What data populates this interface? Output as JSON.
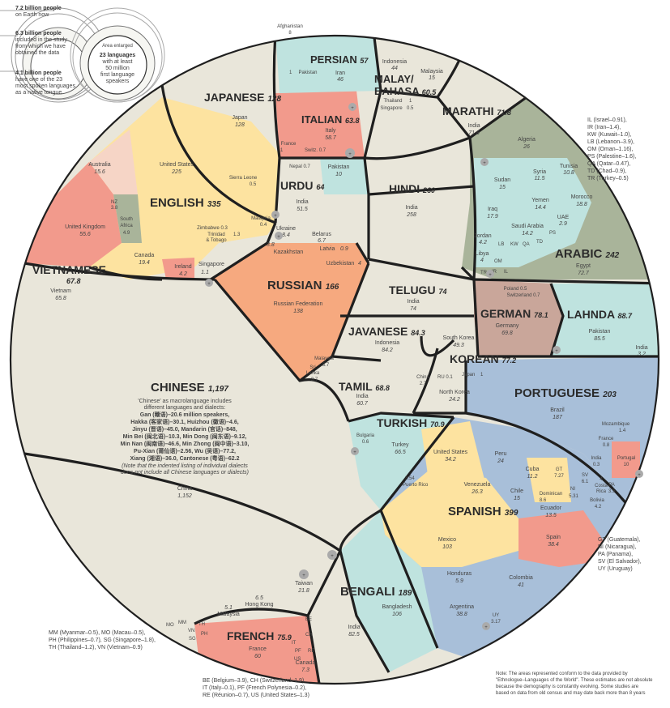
{
  "legend": {
    "earth_value": "7.2 billion people",
    "earth_desc": "on Earth now",
    "study_value": "6.3 billion people",
    "study_desc_1": "included in the study",
    "study_desc_2": "from which we have",
    "study_desc_3": "obtained the data",
    "native_value": "4.1 billion people",
    "native_desc_1": "have one of the 23",
    "native_desc_2": "most spoken languages",
    "native_desc_3": "as a native tongue",
    "enlarged": "Area enlarged",
    "inner_1": "23 languages",
    "inner_2": "with at least",
    "inner_3": "50 million",
    "inner_4": "first language",
    "inner_5": "speakers"
  },
  "languages": {
    "chinese": {
      "name": "CHINESE",
      "total": "1,197",
      "china_label": "China",
      "china_value": "1,152",
      "note_1": "'Chinese' as macrolanguage includes",
      "note_2": "different languages and dialects:",
      "d1": "Gan (赣语)–20.6 million speakers,",
      "d2": "Hakka (客家语)–30.1, Huizhou (徽语)–4.6,",
      "d3": "Jinyu (晋语)–45.0, Mandarin (官话)–848,",
      "d4": "Min Bei (闽北语)–10.3, Min Dong (闽东语)–9.12,",
      "d5": "Min Nan (闽南语)–46.6, Min Zhong (闽中语)–3.10,",
      "d6": "Pu-Xian (莆仙语)–2.56, Wu (吴语)–77.2,",
      "d7": "Xiang (湘语)–36.0, Cantonese (粤语)–62.2",
      "d8": "(Note that the indented listing of individual dialects",
      "d9": "does not include all Chinese languages or dialects)",
      "taiwan": "Taiwan",
      "taiwan_v": "21.8",
      "hk": "Hong Kong",
      "hk_v": "6.5",
      "malaysia": "Malaysia",
      "malaysia_v": "5.1",
      "mm": "MM",
      "mo": "MO",
      "vn": "VN",
      "th": "TH",
      "ph": "PH",
      "sg": "SG"
    },
    "english": {
      "name": "ENGLISH",
      "total": "335",
      "us": "United States",
      "us_v": "225",
      "uk": "United Kingdom",
      "uk_v": "55.6",
      "canada": "Canada",
      "canada_v": "19.4",
      "australia": "Australia",
      "australia_v": "15.6",
      "sa": "South",
      "sa2": "Africa",
      "sa_v": "4.9",
      "nz": "NZ",
      "nz_v": "3.8",
      "ireland": "Ireland",
      "ireland_v": "4.2",
      "singapore": "Singapore",
      "singapore_v": "1.1",
      "zim": "Zimbabwe",
      "zim_v": "0.3",
      "tt1": "Trinidad",
      "tt2": "& Tobago",
      "tt_v": "1.3",
      "sl": "Sierra Leone",
      "sl_v": "0.5",
      "my": "Malaysia",
      "my_v": "0.4"
    },
    "japanese": {
      "name": "JAPANESE",
      "total": "128",
      "japan": "Japan",
      "japan_v": "128"
    },
    "italian": {
      "name": "ITALIAN",
      "total": "63.8",
      "italy": "Italy",
      "italy_v": "58.7",
      "france": "France",
      "france_v": "1",
      "swiss": "Switz.",
      "swiss_v": "0.7"
    },
    "persian": {
      "name": "PERSIAN",
      "total": "57",
      "iran": "Iran",
      "iran_v": "46",
      "afg": "Afghanistan",
      "afg_v": "8",
      "pak": "Pakistan",
      "pak_v": "1"
    },
    "malay": {
      "name": "MALAY/",
      "name2": "BAHASA",
      "total": "60.5",
      "indo": "Indonesia",
      "indo_v": "44",
      "mal": "Malaysia",
      "mal_v": "15",
      "thai": "Thailand",
      "thai_v": "1",
      "sing": "Singapore",
      "sing_v": "0.5"
    },
    "marathi": {
      "name": "MARATHI",
      "total": "71.8",
      "india": "India",
      "india_v": "71.8"
    },
    "urdu": {
      "name": "URDU",
      "total": "64",
      "india": "India",
      "india_v": "51.5",
      "pak": "Pakistan",
      "pak_v": "10",
      "nepal": "Nepal",
      "nepal_v": "0.7"
    },
    "hindi": {
      "name": "HINDI",
      "total": "260",
      "india": "India",
      "india_v": "258"
    },
    "arabic": {
      "name": "ARABIC",
      "total": "242",
      "egypt": "Egypt",
      "egypt_v": "72.7",
      "algeria": "Algeria",
      "algeria_v": "26",
      "sudan": "Sudan",
      "sudan_v": "15",
      "syria": "Syria",
      "syria_v": "11.5",
      "tunisia": "Tunisia",
      "tunisia_v": "10.8",
      "yemen": "Yemen",
      "yemen_v": "14.4",
      "morocco": "Morocco",
      "morocco_v": "18.8",
      "iraq": "Iraq",
      "iraq_v": "17.9",
      "saudi": "Saudi Arabia",
      "saudi_v": "14.2",
      "uae": "UAE",
      "uae_v": "2.9",
      "jordan": "Jordan",
      "jordan_v": "4.2",
      "libya": "Libya",
      "libya_v": "4",
      "lb": "LB",
      "kw": "KW",
      "qa": "QA",
      "ps": "PS",
      "td": "TD",
      "om": "OM",
      "ir": "IR",
      "il": "IL",
      "tr": "TR"
    },
    "vietnamese": {
      "name": "VIETNAMESE",
      "total": "67.8",
      "vn": "Vietnam",
      "vn_v": "65.8"
    },
    "russian": {
      "name": "RUSSIAN",
      "total": "166",
      "rf": "Russian Federation",
      "rf_v": "138",
      "ukr": "Ukraine",
      "ukr_v": "8.4",
      "bel": "Belarus",
      "bel_v": "6.7",
      "kaz": "Kazakhstan",
      "kaz_v": "3.8",
      "lat": "Latvia",
      "lat_v": "0.9",
      "uzb": "Uzbekistan",
      "uzb_v": "4"
    },
    "telugu": {
      "name": "TELUGU",
      "total": "74",
      "india": "India",
      "india_v": "74"
    },
    "german": {
      "name": "GERMAN",
      "total": "78.1",
      "ger": "Germany",
      "ger_v": "69.8",
      "pol": "Poland",
      "pol_v": "0.5",
      "sw": "Switzerland",
      "sw_v": "0.7"
    },
    "lahnda": {
      "name": "LAHNDA",
      "total": "88.7",
      "pak": "Pakistan",
      "pak_v": "85.5",
      "india": "India",
      "india_v": "3.2"
    },
    "javanese": {
      "name": "JAVANESE",
      "total": "84.3",
      "indo": "Indonesia",
      "indo_v": "84.2"
    },
    "korean": {
      "name": "KOREAN",
      "total": "77.2",
      "sk": "South Korea",
      "sk_v": "49.3",
      "nk": "North Korea",
      "nk_v": "24.2",
      "china": "China",
      "china_v": "2.7",
      "ru": "RU",
      "ru_v": "0.1",
      "japan": "Japan",
      "japan_v": "1"
    },
    "tamil": {
      "name": "TAMIL",
      "total": "68.8",
      "india": "India",
      "india_v": "60.7",
      "mal": "Malaysia",
      "mal_v": "3.7",
      "sl1": "Sri",
      "sl2": "Lanka",
      "sl_v": "3.7"
    },
    "portuguese": {
      "name": "PORTUGUESE",
      "total": "203",
      "brazil": "Brazil",
      "brazil_v": "187",
      "moz": "Mozambique",
      "moz_v": "1.4",
      "fr": "France",
      "fr_v": "0.8",
      "india": "India",
      "india_v": "0.3",
      "por": "Portugal",
      "por_v": "10"
    },
    "turkish": {
      "name": "TURKISH",
      "total": "70.9",
      "turkey": "Turkey",
      "turkey_v": "66.5",
      "bul": "Bulgaria",
      "bul_v": "0.6"
    },
    "spanish": {
      "name": "SPANISH",
      "total": "399",
      "mex": "Mexico",
      "mex_v": "103",
      "us": "United States",
      "us_v": "34.2",
      "pr": "Puerto Rico",
      "pr_v": "3.54",
      "ven": "Venezuela",
      "ven_v": "26.3",
      "peru": "Peru",
      "peru_v": "24",
      "chile": "Chile",
      "chile_v": "15",
      "cuba": "Cuba",
      "cuba_v": "11.2",
      "gt": "GT",
      "gt_v": "7.27",
      "sv": "SV",
      "sv_v": "6.1",
      "dom": "Dominican",
      "dom_v": "8.6",
      "ni": "NI",
      "ni_v": "5.31",
      "cr1": "Costa",
      "cr2": "Rica",
      "cr_v": "4",
      "pa": "PA",
      "pa_v": "3.5",
      "bol": "Bolivia",
      "bol_v": "4.2",
      "ecu": "Ecuador",
      "ecu_v": "13.5",
      "spain": "Spain",
      "spain_v": "38.4",
      "hon": "Honduras",
      "hon_v": "5.9",
      "col": "Colombia",
      "col_v": "41",
      "arg": "Argentina",
      "arg_v": "38.8",
      "uy": "UY",
      "uy_v": "3.17"
    },
    "bengali": {
      "name": "BENGALI",
      "total": "189",
      "bd": "Bangladesh",
      "bd_v": "106",
      "india": "India",
      "india_v": "82.5"
    },
    "french": {
      "name": "FRENCH",
      "total": "75.9",
      "fr": "France",
      "fr_v": "60",
      "can": "Canada",
      "can_v": "7.3",
      "be": "BE",
      "ch": "CH",
      "it": "IT",
      "pf": "PF",
      "re": "RE",
      "us": "US"
    }
  },
  "codes_arabic": [
    "IL (Israel–0.91),",
    "IR (Iran–1.4),",
    "KW (Kuwait–1.0),",
    "LB (Lebanon–3.9),",
    "OM (Oman–1.16),",
    "PS (Palestine–1.6),",
    "QA (Qatar–0.47),",
    "TD (Chad–0.9),",
    "TR (Turkey–0.5)"
  ],
  "codes_spanish": [
    "GT (Guatemala),",
    "NI (Nicaragua),",
    "PA (Panama),",
    "SV (El Salvador),",
    "UY (Uruguay)"
  ],
  "codes_chinese": [
    "MM (Myanmar–0.5), MO (Macau–0.5),",
    "PH (Philippines–0.7), SG (Singapore–1.8),",
    "TH (Thailand–1.2), VN (Vietnam–0.9)"
  ],
  "codes_french": [
    "BE (Belgium–3.9), CH (Switzerland–1.9),",
    "IT (Italy–0.1), PF (French Polynesia–0.2),",
    "RE (Réunion–0.7), US (United States–1.3)"
  ],
  "footnote": [
    "Note: The areas represented conform to the data provided by",
    "\"Ethnologue–Languages of the World\". These estimates are not absolute",
    "because the demography is constantly evolving. Some studies are",
    "based on data from old census and may date back more than 8 years"
  ],
  "plus": "+",
  "colors": {
    "chinese": "#e9e6da",
    "english": "#fde3a0",
    "japanese": "#e9e6da",
    "italian": "#f29a8c",
    "persian": "#bfe3df",
    "malay": "#e9e6da",
    "marathi": "#e9e6da",
    "urdu": "#e9e6da",
    "hindi": "#e9e6da",
    "arabic": "#a9b49a",
    "arabic_light": "#bfe3df",
    "vietnamese": "#e9e6da",
    "russian": "#f6a97f",
    "telugu": "#e9e6da",
    "german": "#c9a69a",
    "lahnda": "#bfe3df",
    "javanese": "#e9e6da",
    "korean": "#e9e6da",
    "tamil": "#e9e6da",
    "portuguese": "#a8bfd9",
    "turkish": "#bfe3df",
    "spanish": "#fde3a0",
    "spanish_blue": "#a8bfd9",
    "spanish_red": "#f29a8c",
    "bengali": "#bfe3df",
    "french": "#f29a8c",
    "line": "#1f1f1f"
  }
}
